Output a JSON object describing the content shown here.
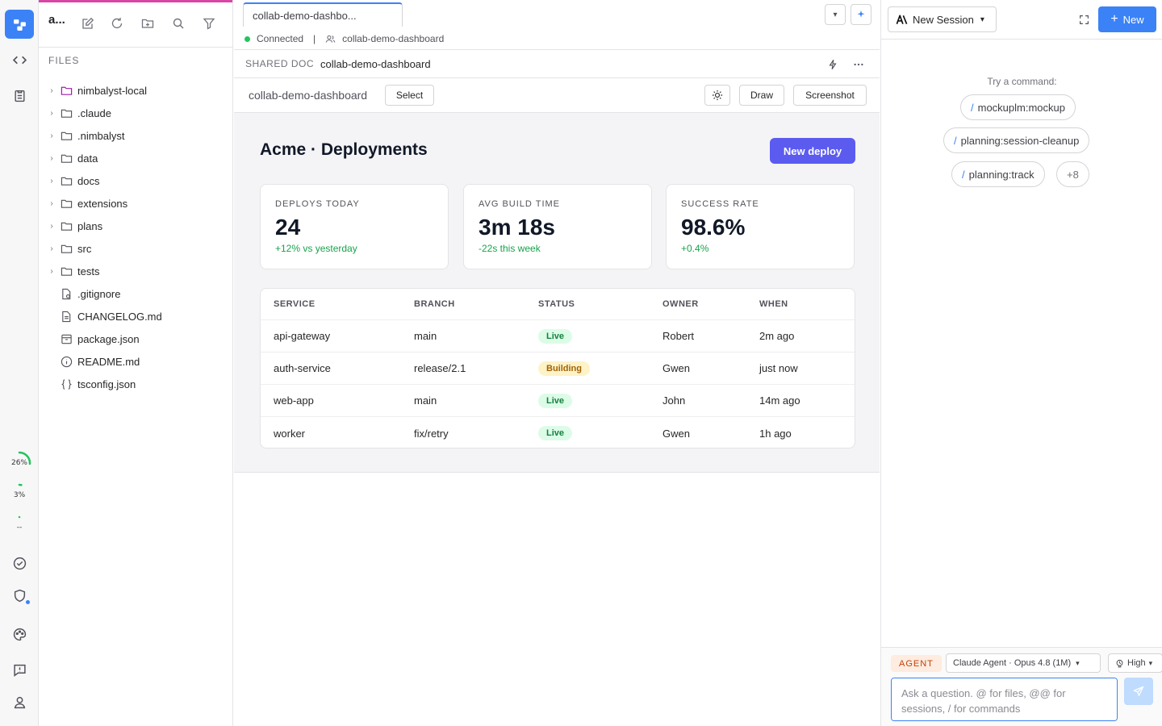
{
  "explorer": {
    "title": "a...",
    "section_label": "FILES",
    "items": [
      {
        "name": "nimbalyst-local",
        "kind": "folder-accent",
        "chev": "›"
      },
      {
        "name": ".claude",
        "kind": "folder",
        "chev": "›"
      },
      {
        "name": ".nimbalyst",
        "kind": "folder",
        "chev": "›"
      },
      {
        "name": "data",
        "kind": "folder",
        "chev": "›"
      },
      {
        "name": "docs",
        "kind": "folder",
        "chev": "›"
      },
      {
        "name": "extensions",
        "kind": "folder",
        "chev": "›"
      },
      {
        "name": "plans",
        "kind": "folder",
        "chev": "›"
      },
      {
        "name": "src",
        "kind": "folder",
        "chev": "›"
      },
      {
        "name": "tests",
        "kind": "folder",
        "chev": "›"
      },
      {
        "name": ".gitignore",
        "kind": "gear-file",
        "chev": ""
      },
      {
        "name": "CHANGELOG.md",
        "kind": "doc-file",
        "chev": ""
      },
      {
        "name": "package.json",
        "kind": "package-file",
        "chev": ""
      },
      {
        "name": "README.md",
        "kind": "info-file",
        "chev": ""
      },
      {
        "name": "tsconfig.json",
        "kind": "braces-file",
        "chev": ""
      }
    ]
  },
  "activity": {
    "gauges": [
      {
        "label": "26%",
        "level": 0.26,
        "color": "#22c55e"
      },
      {
        "label": "3%",
        "level": 0.03,
        "color": "#22c55e"
      },
      {
        "label": "--",
        "level": 0,
        "color": "#22c55e"
      }
    ],
    "notify_color": "#3b82f6"
  },
  "editor": {
    "tab_label": "collab-demo-dashbo...",
    "status": {
      "connected": "Connected",
      "separator": "|",
      "doc": "collab-demo-dashboard"
    },
    "doc_kicker": "SHARED DOC",
    "doc_name": "collab-demo-dashboard",
    "toolbar": {
      "label": "collab-demo-dashboard",
      "select": "Select",
      "draw": "Draw",
      "screenshot": "Screenshot"
    }
  },
  "dashboard": {
    "title": "Acme · Deployments",
    "new_deploy": "New deploy",
    "accent": "#5b5bf0",
    "stats": [
      {
        "label": "DEPLOYS TODAY",
        "value": "24",
        "delta": "+12% vs yesterday"
      },
      {
        "label": "AVG BUILD TIME",
        "value": "3m 18s",
        "delta": "-22s this week"
      },
      {
        "label": "SUCCESS RATE",
        "value": "98.6%",
        "delta": "+0.4%"
      }
    ],
    "columns": [
      "SERVICE",
      "BRANCH",
      "STATUS",
      "OWNER",
      "WHEN"
    ],
    "rows": [
      {
        "service": "api-gateway",
        "branch": "main",
        "status": "Live",
        "status_kind": "live",
        "owner": "Robert",
        "when": "2m ago"
      },
      {
        "service": "auth-service",
        "branch": "release/2.1",
        "status": "Building",
        "status_kind": "building",
        "owner": "Gwen",
        "when": "just now"
      },
      {
        "service": "web-app",
        "branch": "main",
        "status": "Live",
        "status_kind": "live",
        "owner": "John",
        "when": "14m ago"
      },
      {
        "service": "worker",
        "branch": "fix/retry",
        "status": "Live",
        "status_kind": "live",
        "owner": "Gwen",
        "when": "1h ago"
      }
    ]
  },
  "agent_panel": {
    "session_label": "New Session",
    "new_label": "New",
    "try_label": "Try a command:",
    "commands": [
      "mockuplm:mockup",
      "planning:session-cleanup",
      "planning:track"
    ],
    "more_label": "+8",
    "slash": "/",
    "agent_tag": "AGENT",
    "model": "Claude Agent · Opus 4.8 (1M)",
    "effort": "High",
    "input_placeholder": "Ask a question. @ for files, @@ for sessions, / for commands"
  }
}
